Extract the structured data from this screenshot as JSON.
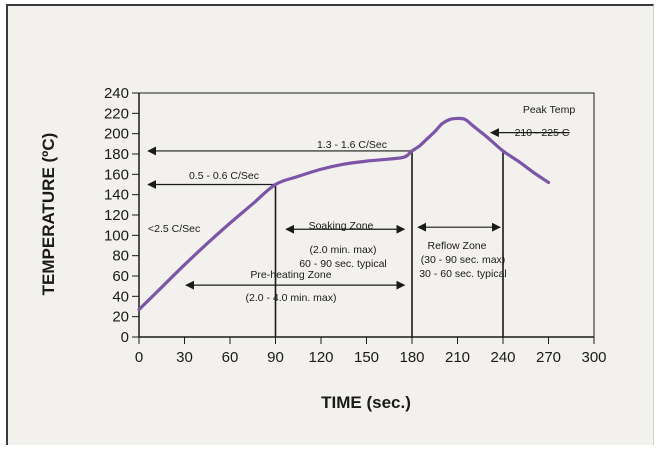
{
  "chart_data": {
    "type": "line",
    "xlabel": "TIME (sec.)",
    "ylabel": "TEMPERATURE (ºC)",
    "xlim": [
      0,
      300
    ],
    "ylim": [
      0,
      240
    ],
    "x_ticks": [
      0,
      30,
      60,
      90,
      120,
      150,
      180,
      210,
      240,
      270,
      300
    ],
    "y_ticks": [
      0,
      20,
      40,
      60,
      80,
      100,
      120,
      140,
      160,
      180,
      200,
      220,
      240
    ],
    "grid": false,
    "series": [
      {
        "color": "#7d55a6",
        "x": [
          0,
          15,
          30,
          45,
          60,
          75,
          90,
          105,
          120,
          135,
          150,
          165,
          175,
          180,
          185,
          190,
          195,
          200,
          205,
          210,
          215,
          220,
          225,
          230,
          240,
          250,
          260,
          270
        ],
        "y": [
          27,
          49,
          71,
          92,
          112,
          131,
          150,
          158,
          165,
          170,
          173,
          175,
          177,
          183,
          188,
          195,
          202,
          210,
          214,
          215,
          214,
          208,
          202,
          196,
          183,
          173,
          162,
          152
        ]
      }
    ],
    "vertical_lines": [
      {
        "x": 90,
        "y_top": 150
      },
      {
        "x": 180,
        "y_top": 183
      },
      {
        "x": 240,
        "y_top": 183
      }
    ],
    "annotations": {
      "rate_0": "<2.5 C/Sec",
      "rate_1": "0.5 - 0.6 C/Sec",
      "rate_2": "1.3 - 1.6 C/Sec",
      "peak_title": "Peak Temp",
      "peak_range": "210 - 225 C",
      "soak_title": "Soaking Zone",
      "soak_max": "(2.0 min. max)",
      "soak_typical": "60 - 90 sec. typical",
      "reflow_title": "Reflow Zone",
      "reflow_max": "(30 - 90 sec. max)",
      "reflow_typical": "30 - 60 sec. typical",
      "preheat_title": "Pre-heating Zone",
      "preheat_max": "(2.0 - 4.0 min. max)"
    }
  }
}
